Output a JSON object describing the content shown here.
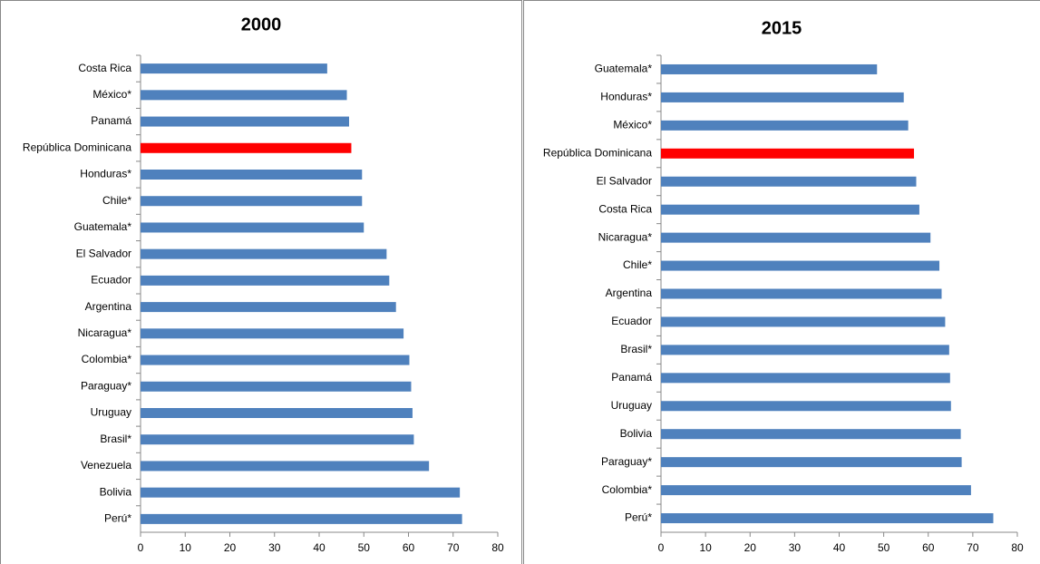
{
  "chart_data": [
    {
      "type": "bar",
      "orientation": "horizontal",
      "title": "2000",
      "categories": [
        "Costa Rica",
        "México*",
        "Panamá",
        "República Dominicana",
        "Honduras*",
        "Chile*",
        "Guatemala*",
        "El Salvador",
        "Ecuador",
        "Argentina",
        "Nicaragua*",
        "Colombia*",
        "Paraguay*",
        "Uruguay",
        "Brasil*",
        "Venezuela",
        "Bolivia",
        "Perú*"
      ],
      "values": [
        41.8,
        46.2,
        46.7,
        47.2,
        49.6,
        49.6,
        50.0,
        55.1,
        55.7,
        57.2,
        58.9,
        60.2,
        60.6,
        60.9,
        61.2,
        64.6,
        71.5,
        72.0
      ],
      "colors": [
        "#4f81bd",
        "#4f81bd",
        "#4f81bd",
        "#ff0000",
        "#4f81bd",
        "#4f81bd",
        "#4f81bd",
        "#4f81bd",
        "#4f81bd",
        "#4f81bd",
        "#4f81bd",
        "#4f81bd",
        "#4f81bd",
        "#4f81bd",
        "#4f81bd",
        "#4f81bd",
        "#4f81bd",
        "#4f81bd"
      ],
      "xlim": [
        0,
        80
      ],
      "xticks": [
        0,
        10,
        20,
        30,
        40,
        50,
        60,
        70,
        80
      ],
      "grid": false
    },
    {
      "type": "bar",
      "orientation": "horizontal",
      "title": "2015",
      "categories": [
        "Guatemala*",
        "Honduras*",
        "México*",
        "República Dominicana",
        "El Salvador",
        "Costa Rica",
        "Nicaragua*",
        "Chile*",
        "Argentina",
        "Ecuador",
        "Brasil*",
        "Panamá",
        "Uruguay",
        "Bolivia",
        "Paraguay*",
        "Colombia*",
        "Perú*"
      ],
      "values": [
        48.5,
        54.5,
        55.5,
        56.8,
        57.3,
        58.0,
        60.5,
        62.5,
        63.0,
        63.8,
        64.7,
        64.9,
        65.1,
        67.3,
        67.5,
        69.6,
        74.6
      ],
      "colors": [
        "#4f81bd",
        "#4f81bd",
        "#4f81bd",
        "#ff0000",
        "#4f81bd",
        "#4f81bd",
        "#4f81bd",
        "#4f81bd",
        "#4f81bd",
        "#4f81bd",
        "#4f81bd",
        "#4f81bd",
        "#4f81bd",
        "#4f81bd",
        "#4f81bd",
        "#4f81bd",
        "#4f81bd"
      ],
      "xlim": [
        0,
        80
      ],
      "xticks": [
        0,
        10,
        20,
        30,
        40,
        50,
        60,
        70,
        80
      ],
      "grid": false
    }
  ]
}
